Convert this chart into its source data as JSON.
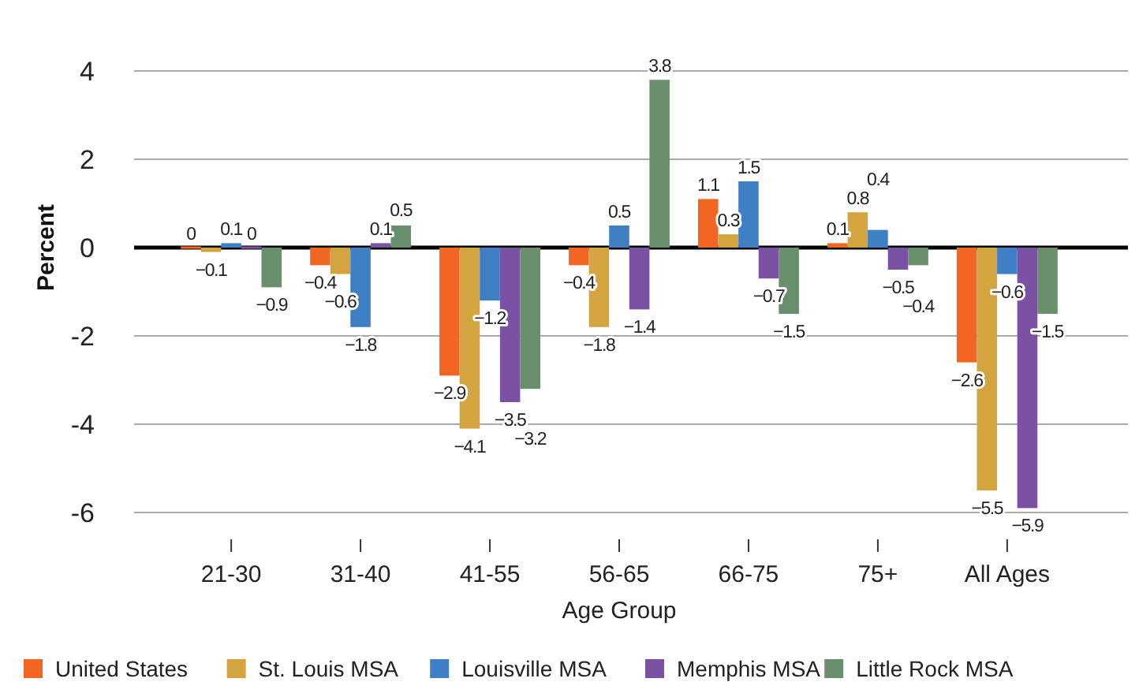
{
  "chart_data": {
    "type": "bar",
    "xlabel": "Age Group",
    "ylabel": "Percent",
    "categories": [
      "21-30",
      "31-40",
      "41-55",
      "56-65",
      "66-75",
      "75+",
      "All Ages"
    ],
    "series": [
      {
        "name": "United States",
        "color": "#f26522",
        "values": [
          0,
          -0.4,
          -2.9,
          -0.4,
          1.1,
          0.1,
          -2.6
        ]
      },
      {
        "name": "St. Louis MSA",
        "color": "#d4a53f",
        "values": [
          -0.1,
          -0.6,
          -4.1,
          -1.8,
          0.3,
          0.8,
          -5.5
        ]
      },
      {
        "name": "Louisville MSA",
        "color": "#3f7fc4",
        "values": [
          0.1,
          -1.8,
          -1.2,
          0.5,
          1.5,
          0.4,
          -0.6
        ]
      },
      {
        "name": "Memphis MSA",
        "color": "#7b52a3",
        "values": [
          0,
          0.1,
          -3.5,
          -1.4,
          -0.7,
          -0.5,
          -5.9
        ]
      },
      {
        "name": "Little Rock MSA",
        "color": "#6a8f6c",
        "values": [
          -0.9,
          0.5,
          -3.2,
          3.8,
          -1.5,
          -0.4,
          -1.5
        ]
      }
    ],
    "ylim": [
      -6,
      4
    ],
    "yticks": [
      {
        "value": -6,
        "label": "-6"
      },
      {
        "value": -4,
        "label": "-4"
      },
      {
        "value": -2,
        "label": "-2"
      },
      0,
      2,
      4
    ],
    "grid": "y",
    "legend": "bottom",
    "data_labels": true
  }
}
